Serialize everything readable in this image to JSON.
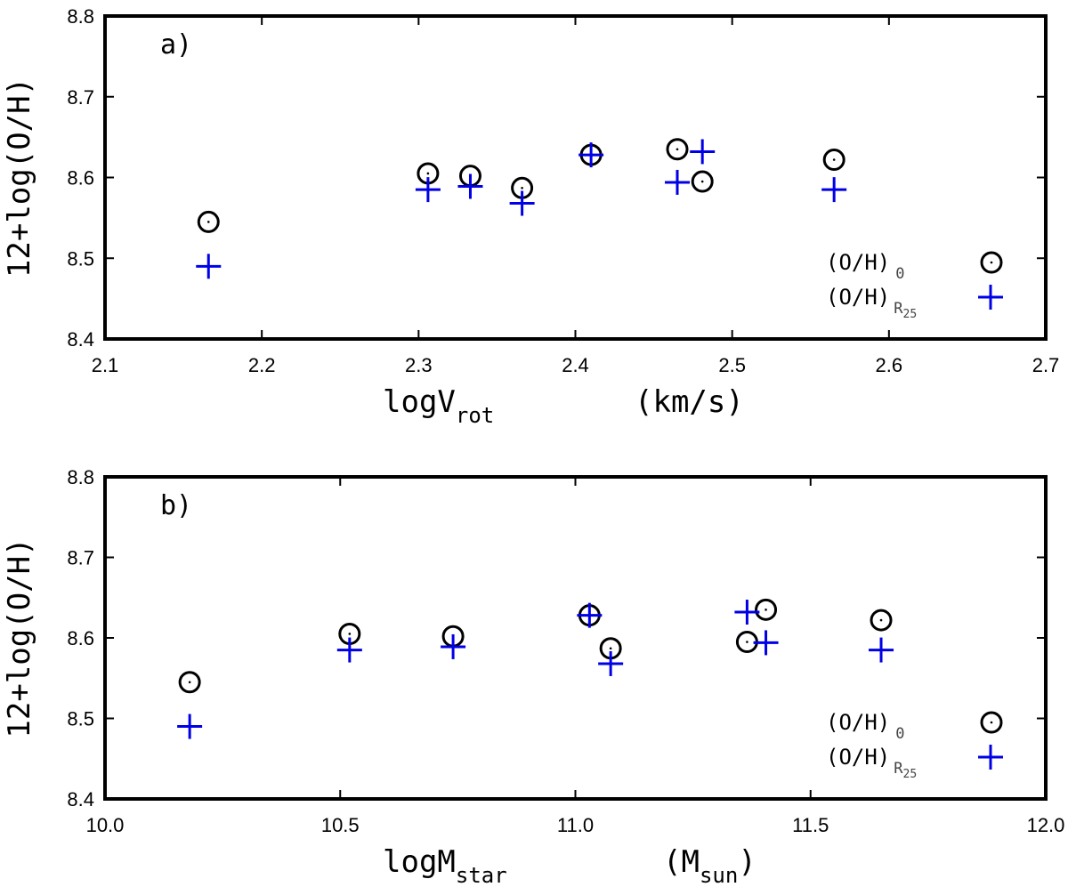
{
  "colors": {
    "series_0": "#000000",
    "series_r25": "#0000e6",
    "frame": "#000000"
  },
  "chart_data": [
    {
      "type": "scatter",
      "panel_label": "a)",
      "xlabel_main": "logV",
      "xlabel_sub": "rot",
      "xlabel_unit": "(km/s)",
      "ylabel": "12+log(O/H)",
      "xlim": [
        2.1,
        2.7
      ],
      "ylim": [
        8.4,
        8.8
      ],
      "xticks": [
        "2.1",
        "2.2",
        "2.3",
        "2.4",
        "2.5",
        "2.6",
        "2.7"
      ],
      "yticks": [
        "8.4",
        "8.5",
        "8.6",
        "8.7",
        "8.8"
      ],
      "legend_position": "bottom-right",
      "series": [
        {
          "name": "(O/H)",
          "name_sub": "0",
          "marker": "circle-dot",
          "points": [
            [
              2.166,
              8.545
            ],
            [
              2.306,
              8.605
            ],
            [
              2.333,
              8.602
            ],
            [
              2.366,
              8.587
            ],
            [
              2.41,
              8.628
            ],
            [
              2.465,
              8.635
            ],
            [
              2.481,
              8.595
            ],
            [
              2.565,
              8.622
            ]
          ]
        },
        {
          "name": "(O/H)",
          "name_sub": "R",
          "name_sub2": "25",
          "marker": "plus",
          "points": [
            [
              2.166,
              8.49
            ],
            [
              2.306,
              8.585
            ],
            [
              2.333,
              8.589
            ],
            [
              2.366,
              8.568
            ],
            [
              2.41,
              8.628
            ],
            [
              2.465,
              8.594
            ],
            [
              2.481,
              8.632
            ],
            [
              2.565,
              8.585
            ]
          ]
        }
      ]
    },
    {
      "type": "scatter",
      "panel_label": "b)",
      "xlabel_main": "logM",
      "xlabel_sub": "star",
      "xlabel_unit": "(M",
      "xlabel_unit_sub": "sun",
      "xlabel_unit_close": ")",
      "ylabel": "12+log(O/H)",
      "xlim": [
        10.0,
        12.0
      ],
      "ylim": [
        8.4,
        8.8
      ],
      "xticks": [
        "10.0",
        "10.5",
        "11.0",
        "11.5",
        "12.0"
      ],
      "yticks": [
        "8.4",
        "8.5",
        "8.6",
        "8.7",
        "8.8"
      ],
      "legend_position": "bottom-right",
      "series": [
        {
          "name": "(O/H)",
          "name_sub": "0",
          "marker": "circle-dot",
          "points": [
            [
              10.18,
              8.545
            ],
            [
              10.52,
              8.605
            ],
            [
              10.74,
              8.602
            ],
            [
              11.03,
              8.628
            ],
            [
              11.075,
              8.587
            ],
            [
              11.365,
              8.595
            ],
            [
              11.405,
              8.635
            ],
            [
              11.65,
              8.622
            ]
          ]
        },
        {
          "name": "(O/H)",
          "name_sub": "R",
          "name_sub2": "25",
          "marker": "plus",
          "points": [
            [
              10.18,
              8.49
            ],
            [
              10.52,
              8.585
            ],
            [
              10.74,
              8.589
            ],
            [
              11.03,
              8.628
            ],
            [
              11.075,
              8.568
            ],
            [
              11.365,
              8.632
            ],
            [
              11.405,
              8.594
            ],
            [
              11.65,
              8.585
            ]
          ]
        }
      ]
    }
  ]
}
